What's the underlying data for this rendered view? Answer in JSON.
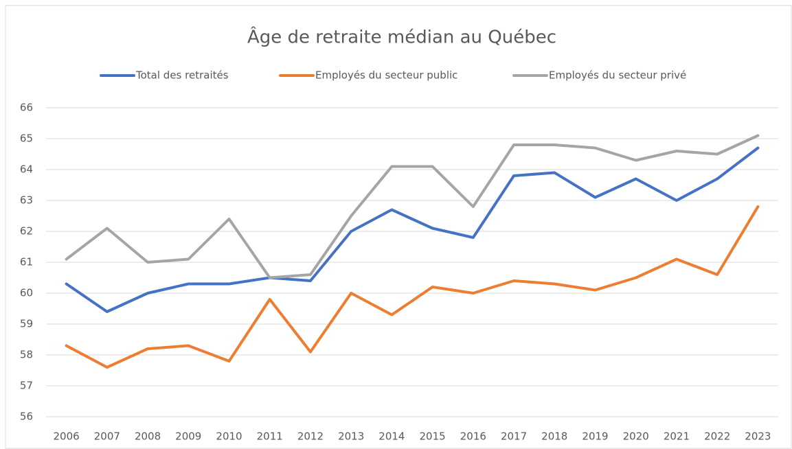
{
  "chart_data": {
    "type": "line",
    "title": "Âge de retraite médian au Québec",
    "categories": [
      "2006",
      "2007",
      "2008",
      "2009",
      "2010",
      "2011",
      "2012",
      "2013",
      "2014",
      "2015",
      "2016",
      "2017",
      "2018",
      "2019",
      "2020",
      "2021",
      "2022",
      "2023"
    ],
    "series": [
      {
        "name": "Total des retraités",
        "color": "#4472c4",
        "values": [
          60.3,
          59.4,
          60.0,
          60.3,
          60.3,
          60.5,
          60.4,
          62.0,
          62.7,
          62.1,
          61.8,
          63.8,
          63.9,
          63.1,
          63.7,
          63.0,
          63.7,
          64.7
        ]
      },
      {
        "name": "Employés du secteur public",
        "color": "#ed7d31",
        "values": [
          58.3,
          57.6,
          58.2,
          58.3,
          57.8,
          59.8,
          58.1,
          60.0,
          59.3,
          60.2,
          60.0,
          60.4,
          60.3,
          60.1,
          60.5,
          61.1,
          60.6,
          62.8
        ]
      },
      {
        "name": "Employés du secteur privé",
        "color": "#a5a5a5",
        "values": [
          61.1,
          62.1,
          61.0,
          61.1,
          62.4,
          60.5,
          60.6,
          62.5,
          64.1,
          64.1,
          62.8,
          64.8,
          64.8,
          64.7,
          64.3,
          64.6,
          64.5,
          65.1
        ]
      }
    ],
    "ylim": [
      56,
      66
    ],
    "yticks": [
      56,
      57,
      58,
      59,
      60,
      61,
      62,
      63,
      64,
      65,
      66
    ],
    "grid": true,
    "legend": "top"
  }
}
